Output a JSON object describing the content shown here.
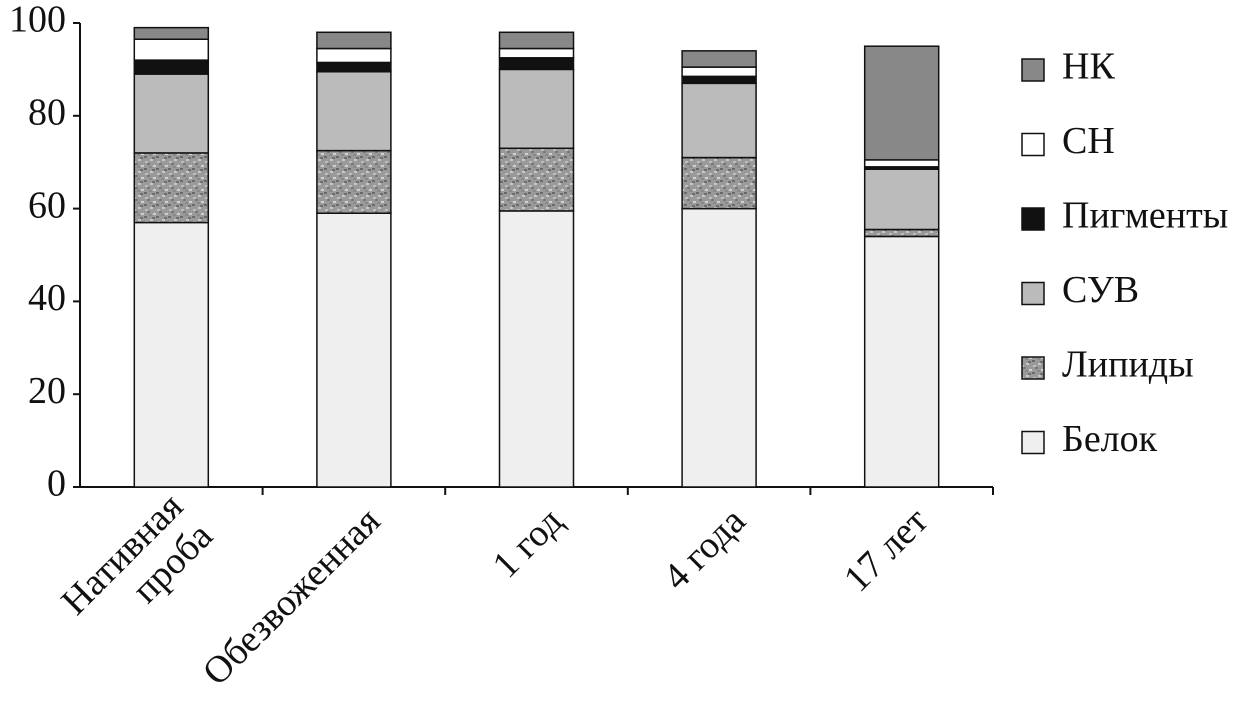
{
  "chart_data": {
    "type": "stacked_bar",
    "categories": [
      "Нативная\nпроба",
      "Обезвоженная",
      "1 год",
      "4 года",
      "17 лет"
    ],
    "series": [
      {
        "name": "Белок",
        "color": "#efefef",
        "values": [
          57,
          59,
          59.5,
          60,
          54
        ]
      },
      {
        "name": "Липиды",
        "color": "#9a9a9a",
        "pattern": "mottled",
        "values": [
          15,
          13.5,
          13.5,
          11,
          1.5
        ]
      },
      {
        "name": "СУВ",
        "color": "#bbbbbb",
        "values": [
          17,
          17,
          17,
          16,
          13
        ]
      },
      {
        "name": "Пигменты",
        "color": "#111111",
        "values": [
          3,
          2,
          2.5,
          1.5,
          0.5
        ]
      },
      {
        "name": "СН",
        "color": "#ffffff",
        "values": [
          4.5,
          3,
          2,
          2,
          1.5
        ]
      },
      {
        "name": "НК",
        "color": "#888888",
        "values": [
          2.5,
          3.5,
          3.5,
          3.5,
          24.5
        ]
      }
    ],
    "ylim": [
      0,
      100
    ],
    "yticks": [
      0,
      20,
      40,
      60,
      80,
      100
    ],
    "grid": false,
    "legend": "right"
  }
}
